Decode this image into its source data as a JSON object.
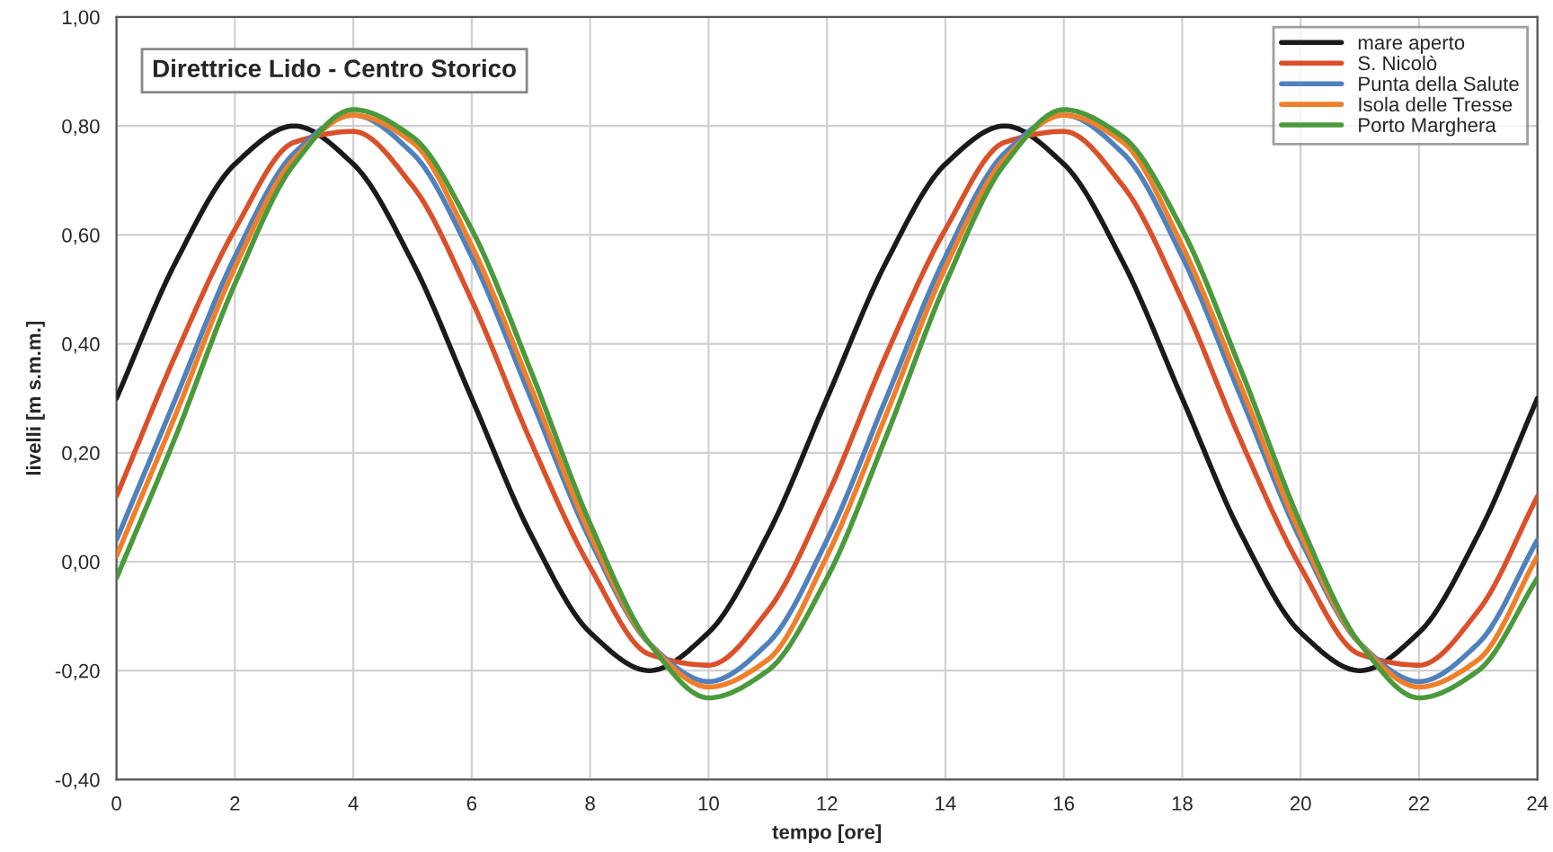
{
  "chart_data": {
    "type": "line",
    "title": "Direttrice Lido - Centro Storico",
    "xlabel": "tempo [ore]",
    "ylabel": "livelli [m s.m.m.]",
    "x": [
      0,
      1,
      2,
      3,
      4,
      5,
      6,
      7,
      8,
      9,
      10,
      11,
      12,
      13,
      14,
      15,
      16,
      17,
      18,
      19,
      20,
      21,
      22,
      23,
      24
    ],
    "series": [
      {
        "name": "mare aperto",
        "color": "#1a1a1a",
        "values": [
          0.3,
          0.55,
          0.73,
          0.8,
          0.73,
          0.55,
          0.3,
          0.05,
          -0.13,
          -0.2,
          -0.13,
          0.05,
          0.3,
          0.55,
          0.73,
          0.8,
          0.73,
          0.55,
          0.3,
          0.05,
          -0.13,
          -0.2,
          -0.13,
          0.05,
          0.3
        ]
      },
      {
        "name": "S. Nicolò",
        "color": "#d9502a",
        "values": [
          0.12,
          0.38,
          0.61,
          0.77,
          0.79,
          0.69,
          0.48,
          0.22,
          -0.01,
          -0.17,
          -0.19,
          -0.09,
          0.12,
          0.38,
          0.61,
          0.77,
          0.79,
          0.69,
          0.48,
          0.22,
          -0.01,
          -0.17,
          -0.19,
          -0.09,
          0.12
        ]
      },
      {
        "name": "Punta della Salute",
        "color": "#4f81bd",
        "values": [
          0.04,
          0.3,
          0.56,
          0.75,
          0.82,
          0.75,
          0.56,
          0.3,
          0.04,
          -0.15,
          -0.22,
          -0.15,
          0.04,
          0.3,
          0.56,
          0.75,
          0.82,
          0.75,
          0.56,
          0.3,
          0.04,
          -0.15,
          -0.22,
          -0.15,
          0.04
        ]
      },
      {
        "name": "Isola delle Tresse",
        "color": "#f07f2a",
        "values": [
          0.01,
          0.27,
          0.54,
          0.74,
          0.82,
          0.77,
          0.58,
          0.32,
          0.05,
          -0.15,
          -0.23,
          -0.18,
          0.01,
          0.27,
          0.54,
          0.74,
          0.82,
          0.77,
          0.58,
          0.32,
          0.05,
          -0.15,
          -0.23,
          -0.18,
          0.01
        ]
      },
      {
        "name": "Porto Marghera",
        "color": "#4a9a3c",
        "values": [
          -0.03,
          0.23,
          0.51,
          0.73,
          0.83,
          0.78,
          0.61,
          0.35,
          0.07,
          -0.15,
          -0.25,
          -0.2,
          -0.03,
          0.23,
          0.51,
          0.73,
          0.83,
          0.78,
          0.61,
          0.35,
          0.07,
          -0.15,
          -0.25,
          -0.2,
          -0.03
        ]
      }
    ],
    "xlim": [
      0,
      24
    ],
    "xticks": [
      0,
      2,
      4,
      6,
      8,
      10,
      12,
      14,
      16,
      18,
      20,
      22,
      24
    ],
    "ylim": [
      -0.4,
      1.0
    ],
    "yticks": [
      {
        "value": -0.4,
        "label": "-0,40"
      },
      {
        "value": -0.2,
        "label": "-0,20"
      },
      {
        "value": 0.0,
        "label": "0,00"
      },
      {
        "value": 0.2,
        "label": "0,20"
      },
      {
        "value": 0.4,
        "label": "0,40"
      },
      {
        "value": 0.6,
        "label": "0,60"
      },
      {
        "value": 0.8,
        "label": "0,80"
      },
      {
        "value": 1.0,
        "label": "1,00"
      }
    ],
    "grid": true,
    "legend": "top right",
    "marker": "none",
    "line_style": "solid"
  }
}
